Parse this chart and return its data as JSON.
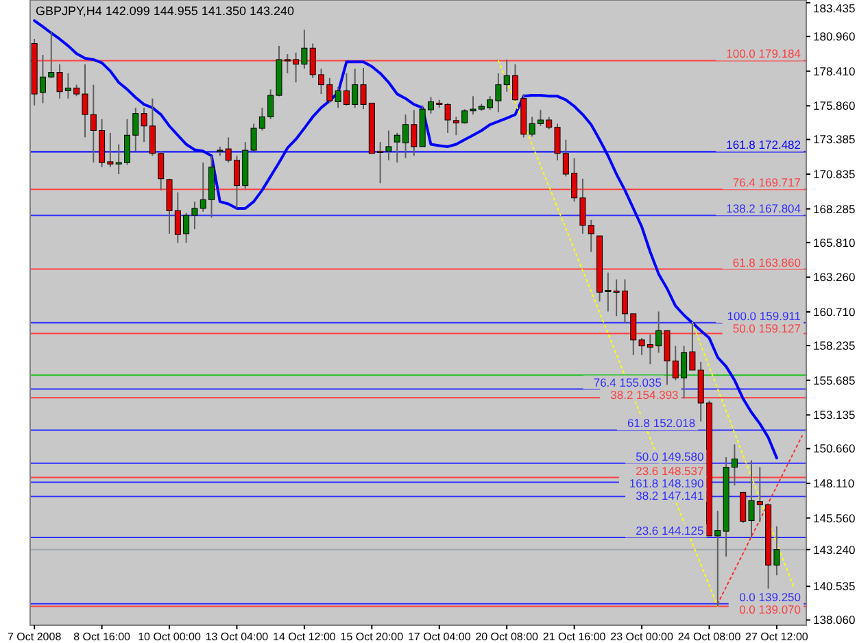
{
  "chart_data": {
    "type": "candlestick",
    "title": "GBPJPY,H4  142.099 144.955 141.350 143.240",
    "categories": [
      "7 Oct 2008",
      null,
      null,
      null,
      null,
      null,
      null,
      null,
      "8 Oct 16:00",
      null,
      null,
      null,
      null,
      null,
      null,
      null,
      "10 Oct 00:00",
      null,
      null,
      null,
      null,
      null,
      null,
      null,
      "13 Oct 04:00",
      null,
      null,
      null,
      null,
      null,
      null,
      null,
      "14 Oct 12:00",
      null,
      null,
      null,
      null,
      null,
      null,
      null,
      "15 Oct 20:00",
      null,
      null,
      null,
      null,
      null,
      null,
      null,
      "17 Oct 04:00",
      null,
      null,
      null,
      null,
      null,
      null,
      null,
      "20 Oct 08:00",
      null,
      null,
      null,
      null,
      null,
      null,
      null,
      "21 Oct 16:00",
      null,
      null,
      null,
      null,
      null,
      null,
      null,
      "23 Oct 00:00",
      null,
      null,
      null,
      null,
      null,
      null,
      null,
      "24 Oct 08:00",
      null,
      null,
      null,
      null,
      null,
      null,
      null,
      "27 Oct 12:00",
      null,
      null,
      null
    ],
    "ohlc": [
      [
        180.44,
        180.77,
        175.89,
        176.73
      ],
      [
        176.84,
        179.6,
        176.06,
        177.98
      ],
      [
        177.98,
        181.35,
        177.91,
        178.32
      ],
      [
        178.32,
        178.92,
        176.4,
        176.9
      ],
      [
        176.97,
        178.25,
        176.4,
        177.17
      ],
      [
        177.17,
        177.41,
        176.57,
        176.73
      ],
      [
        176.73,
        178.92,
        173.54,
        175.22
      ],
      [
        175.22,
        177.41,
        171.69,
        174.04
      ],
      [
        174.04,
        174.88,
        171.35,
        171.69
      ],
      [
        171.75,
        173.87,
        171.35,
        171.58
      ],
      [
        171.58,
        173.03,
        170.84,
        171.69
      ],
      [
        171.69,
        174.88,
        171.52,
        173.7
      ],
      [
        173.7,
        175.72,
        172.53,
        175.29
      ],
      [
        175.29,
        175.72,
        173.2,
        174.38
      ],
      [
        174.38,
        176.4,
        172.19,
        172.36
      ],
      [
        172.36,
        172.53,
        169.66,
        170.5
      ],
      [
        170.44,
        170.5,
        166.46,
        168.15
      ],
      [
        168.15,
        169.5,
        165.79,
        166.4
      ],
      [
        166.46,
        167.98,
        165.79,
        167.81
      ],
      [
        167.81,
        168.82,
        166.8,
        168.32
      ],
      [
        168.32,
        171.69,
        168.08,
        168.96
      ],
      [
        168.96,
        172.19,
        167.64,
        171.35
      ],
      [
        172.53,
        172.86,
        172.19,
        172.6
      ],
      [
        172.7,
        173.54,
        171.69,
        171.85
      ],
      [
        171.85,
        172.19,
        168.32,
        170.0
      ],
      [
        170.0,
        173.2,
        169.76,
        172.6
      ],
      [
        172.6,
        174.55,
        172.53,
        174.21
      ],
      [
        174.21,
        175.72,
        174.04,
        175.05
      ],
      [
        175.05,
        177.07,
        174.88,
        176.63
      ],
      [
        176.63,
        180.27,
        176.56,
        179.26
      ],
      [
        179.26,
        179.66,
        178.25,
        179.2
      ],
      [
        179.26,
        179.77,
        177.58,
        178.92
      ],
      [
        178.92,
        181.45,
        178.59,
        180.1
      ],
      [
        180.1,
        180.44,
        177.91,
        178.15
      ],
      [
        178.15,
        178.59,
        176.73,
        177.41
      ],
      [
        177.41,
        177.91,
        176.06,
        176.23
      ],
      [
        176.16,
        177.24,
        175.72,
        176.97
      ],
      [
        176.97,
        178.25,
        175.89,
        175.96
      ],
      [
        175.96,
        178.59,
        175.72,
        177.41
      ],
      [
        177.41,
        178.65,
        175.62,
        175.96
      ],
      [
        176.06,
        176.06,
        172.36,
        172.36
      ],
      [
        172.53,
        173.2,
        170.17,
        172.45
      ],
      [
        172.53,
        174.04,
        171.85,
        172.86
      ],
      [
        173.2,
        173.87,
        171.69,
        173.7
      ],
      [
        173.13,
        175.22,
        172.02,
        174.48
      ],
      [
        174.48,
        175.56,
        172.19,
        172.86
      ],
      [
        172.86,
        175.89,
        172.86,
        175.62
      ],
      [
        175.56,
        176.5,
        175.29,
        176.16
      ],
      [
        176.06,
        176.3,
        175.72,
        175.96
      ],
      [
        175.96,
        176.06,
        173.87,
        174.82
      ],
      [
        174.78,
        175.05,
        173.7,
        174.61
      ],
      [
        174.61,
        175.62,
        174.55,
        175.49
      ],
      [
        175.49,
        176.57,
        175.22,
        175.62
      ],
      [
        175.62,
        176.0,
        175.49,
        175.82
      ],
      [
        175.72,
        176.57,
        175.56,
        176.3
      ],
      [
        176.23,
        178.25,
        175.39,
        177.41
      ],
      [
        177.41,
        179.26,
        176.9,
        178.08
      ],
      [
        178.08,
        178.92,
        176.23,
        176.3
      ],
      [
        176.4,
        176.73,
        173.54,
        173.77
      ],
      [
        173.77,
        175.05,
        173.6,
        174.55
      ],
      [
        174.55,
        175.56,
        174.38,
        174.82
      ],
      [
        174.82,
        175.05,
        174.14,
        174.28
      ],
      [
        174.28,
        174.55,
        171.85,
        172.36
      ],
      [
        172.36,
        173.37,
        170.67,
        170.84
      ],
      [
        170.91,
        172.02,
        168.82,
        169.09
      ],
      [
        169.09,
        170.5,
        166.46,
        167.07
      ],
      [
        167.07,
        167.47,
        165.12,
        166.46
      ],
      [
        166.3,
        166.3,
        161.48,
        162.16
      ],
      [
        162.2,
        163.6,
        160.74,
        162.3
      ],
      [
        162.25,
        163.1,
        160.4,
        162.2
      ],
      [
        162.25,
        163.1,
        159.9,
        160.57
      ],
      [
        160.57,
        160.57,
        157.54,
        158.65
      ],
      [
        158.65,
        158.79,
        157.54,
        158.21
      ],
      [
        158.31,
        159.06,
        156.87,
        158.11
      ],
      [
        158.21,
        160.74,
        157.71,
        159.33
      ],
      [
        159.33,
        159.33,
        155.35,
        157.1
      ],
      [
        157.1,
        158.21,
        155.69,
        155.86
      ],
      [
        155.86,
        158.21,
        154.35,
        157.71
      ],
      [
        157.78,
        159.91,
        156.43,
        156.43
      ],
      [
        156.43,
        157.04,
        152.66,
        154.01
      ],
      [
        154.01,
        154.18,
        144.24,
        144.24
      ],
      [
        144.24,
        146.09,
        139.07,
        144.65
      ],
      [
        144.58,
        150.03,
        142.73,
        149.29
      ],
      [
        149.29,
        150.97,
        147.95,
        149.9
      ],
      [
        147.44,
        147.44,
        145.2,
        145.32
      ],
      [
        145.36,
        149.8,
        144.08,
        146.84
      ],
      [
        146.77,
        149.3,
        145.26,
        146.54
      ],
      [
        146.54,
        146.6,
        140.37,
        142.099
      ],
      [
        142.099,
        144.955,
        141.35,
        143.24
      ],
      null,
      null,
      null
    ],
    "series": [
      {
        "type": "line",
        "color": "#0000ff",
        "values": [
          182.12,
          181.68,
          181.21,
          180.77,
          180.27,
          179.7,
          179.36,
          179.26,
          179.02,
          178.42,
          177.58,
          177.07,
          176.47,
          175.96,
          175.72,
          175.22,
          174.38,
          173.7,
          173.03,
          172.63,
          172.53,
          172.19,
          168.82,
          168.65,
          168.32,
          168.32,
          168.82,
          169.66,
          170.67,
          171.68,
          172.76,
          173.4,
          174.21,
          175.05,
          175.72,
          176.23,
          176.83,
          179.09,
          179.09,
          179.09,
          178.75,
          178.25,
          177.58,
          176.73,
          176.4,
          175.96,
          175.72,
          173.03,
          172.93,
          172.86,
          173.03,
          173.37,
          173.7,
          174.04,
          174.48,
          174.71,
          174.95,
          175.22,
          176.57,
          176.63,
          176.63,
          176.57,
          176.57,
          176.3,
          175.83,
          175.22,
          174.48,
          173.37,
          172.19,
          170.84,
          169.66,
          168.32,
          166.97,
          165.12,
          163.5,
          162.43,
          161.15,
          160.47,
          159.9,
          159.33,
          158.79,
          157.37,
          156.7,
          155.69,
          154.34,
          153.33,
          152.49,
          151.48,
          149.97,
          null,
          null,
          null
        ]
      },
      {
        "type": "line",
        "color": "#ffff00",
        "line_style": "dotted",
        "values": [
          null,
          null,
          null,
          null,
          null,
          null,
          null,
          null,
          null,
          null,
          null,
          null,
          null,
          null,
          null,
          null,
          null,
          null,
          null,
          null,
          null,
          null,
          null,
          null,
          null,
          null,
          null,
          null,
          null,
          null,
          null,
          null,
          null,
          null,
          null,
          null,
          null,
          null,
          null,
          null,
          null,
          null,
          null,
          null,
          null,
          null,
          null,
          null,
          null,
          null,
          null,
          null,
          null,
          null,
          null,
          179.184,
          null,
          null,
          null,
          null,
          null,
          null,
          null,
          null,
          null,
          null,
          null,
          null,
          null,
          null,
          null,
          null,
          null,
          null,
          null,
          null,
          null,
          null,
          null,
          null,
          null,
          139.07,
          null,
          null,
          null,
          null,
          null,
          null,
          null,
          null,
          null,
          null
        ]
      },
      {
        "type": "line",
        "color": "#ffff00",
        "line_style": "dotted",
        "values": [
          null,
          null,
          null,
          null,
          null,
          null,
          null,
          null,
          null,
          null,
          null,
          null,
          null,
          null,
          null,
          null,
          null,
          null,
          null,
          null,
          null,
          null,
          null,
          null,
          null,
          null,
          null,
          null,
          null,
          null,
          null,
          null,
          null,
          null,
          null,
          null,
          null,
          null,
          null,
          null,
          null,
          null,
          null,
          null,
          null,
          null,
          null,
          null,
          null,
          null,
          null,
          null,
          null,
          null,
          null,
          null,
          null,
          null,
          null,
          null,
          null,
          null,
          null,
          null,
          null,
          null,
          null,
          null,
          null,
          null,
          null,
          null,
          null,
          null,
          null,
          null,
          null,
          null,
          159.911,
          null,
          null,
          null,
          null,
          null,
          null,
          null,
          null,
          null,
          null,
          null,
          140.5,
          null
        ]
      },
      {
        "type": "line",
        "color": "#ff3030",
        "line_style": "dotted",
        "values": [
          null,
          null,
          null,
          null,
          null,
          null,
          null,
          null,
          null,
          null,
          null,
          null,
          null,
          null,
          null,
          null,
          null,
          null,
          null,
          null,
          null,
          null,
          null,
          null,
          null,
          null,
          null,
          null,
          null,
          null,
          null,
          null,
          null,
          null,
          null,
          null,
          null,
          null,
          null,
          null,
          null,
          null,
          null,
          null,
          null,
          null,
          null,
          null,
          null,
          null,
          null,
          null,
          null,
          null,
          null,
          null,
          null,
          null,
          null,
          null,
          null,
          null,
          null,
          null,
          null,
          null,
          null,
          null,
          null,
          null,
          null,
          null,
          null,
          null,
          null,
          null,
          null,
          null,
          null,
          null,
          null,
          139.25,
          null,
          null,
          null,
          null,
          null,
          null,
          null,
          null,
          null,
          151.6
        ]
      }
    ],
    "ylim": [
      137.68,
      183.64
    ],
    "yticks": [
      183.435,
      {
        "value": 180.96,
        "label": "180.960"
      },
      {
        "value": 178.41,
        "label": "178.410"
      },
      {
        "value": 175.86,
        "label": "175.860"
      },
      173.385,
      170.835,
      168.285,
      {
        "value": 165.81,
        "label": "165.810"
      },
      {
        "value": 163.26,
        "label": "163.260"
      },
      {
        "value": 160.71,
        "label": "160.710"
      },
      158.235,
      155.685,
      153.135,
      {
        "value": 150.66,
        "label": "150.660"
      },
      {
        "value": 148.11,
        "label": "148.110"
      },
      {
        "value": 145.56,
        "label": "145.560"
      },
      {
        "value": 143.24,
        "label": "143.240"
      },
      140.535,
      {
        "value": 138.06,
        "label": "138.060"
      }
    ],
    "ref_lines": [
      {
        "axis": "y",
        "value": 179.184,
        "label": "100.0 179.184",
        "color": "#ff4040"
      },
      {
        "axis": "y",
        "value": 172.482,
        "label": "161.8 172.482",
        "color": "#0000ff"
      },
      {
        "axis": "y",
        "value": 169.717,
        "label": "76.4 169.717",
        "color": "#ff4040"
      },
      {
        "axis": "y",
        "value": 167.804,
        "label": "138.2 167.804",
        "color": "#3030ff"
      },
      {
        "axis": "y",
        "value": 163.86,
        "label": "61.8 163.860",
        "color": "#ff4040"
      },
      {
        "axis": "y",
        "value": 159.911,
        "label": "100.0 159.911",
        "color": "#3030ff"
      },
      {
        "axis": "y",
        "value": 159.127,
        "label": "50.0 159.127",
        "color": "#ff4040"
      },
      {
        "axis": "y",
        "value": 156.06,
        "color": "#20c020"
      },
      {
        "axis": "y",
        "value": 155.035,
        "label": "76.4 155.035",
        "color": "#3030ff"
      },
      {
        "axis": "y",
        "value": 154.393,
        "label": "38.2 154.393",
        "color": "#ff4040"
      },
      {
        "axis": "y",
        "value": 152.018,
        "label": "61.8 152.018",
        "color": "#3030ff"
      },
      {
        "axis": "y",
        "value": 149.58,
        "label": "50.0 149.580",
        "color": "#3030ff"
      },
      {
        "axis": "y",
        "value": 148.537,
        "label": "23.6 148.537",
        "color": "#ff4040"
      },
      {
        "axis": "y",
        "value": 148.19,
        "label": "161.8 148.190",
        "color": "#3030ff"
      },
      {
        "axis": "y",
        "value": 147.141,
        "label": "38.2 147.141",
        "color": "#3030ff"
      },
      {
        "axis": "y",
        "value": 144.125,
        "label": "23.6 144.125",
        "color": "#3030ff"
      },
      {
        "axis": "y",
        "value": 143.24,
        "color": "#a0a8b0"
      },
      {
        "axis": "y",
        "value": 139.25,
        "label": "0.0 139.250",
        "color": "#3030ff"
      },
      {
        "axis": "y",
        "value": 139.07,
        "label": "0.0 139.070",
        "color": "#ff4040"
      }
    ]
  }
}
